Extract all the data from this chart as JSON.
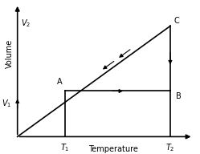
{
  "xlabel": "Temperature",
  "ylabel": "Volume",
  "A": [
    0.3,
    0.35
  ],
  "B": [
    0.85,
    0.35
  ],
  "C": [
    0.85,
    0.82
  ],
  "bg_color": "#ffffff",
  "line_color": "#000000",
  "fs_label": 7,
  "fs_point": 7,
  "fs_tick": 7
}
